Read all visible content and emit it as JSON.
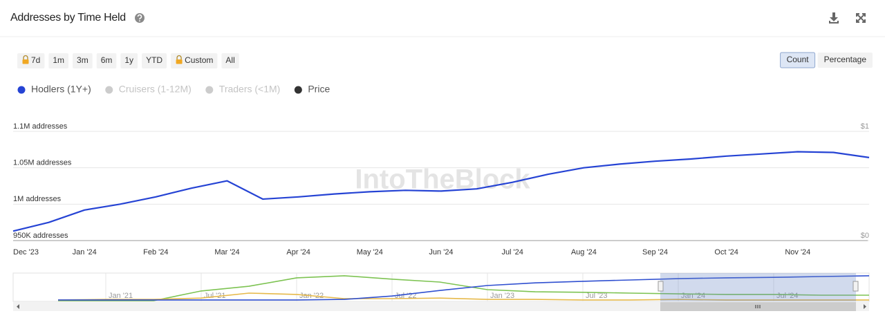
{
  "header": {
    "title": "Addresses by Time Held"
  },
  "range_buttons": [
    {
      "label": "7d",
      "locked": true
    },
    {
      "label": "1m",
      "locked": false
    },
    {
      "label": "3m",
      "locked": false
    },
    {
      "label": "6m",
      "locked": false
    },
    {
      "label": "1y",
      "locked": false
    },
    {
      "label": "YTD",
      "locked": false
    },
    {
      "label": "Custom",
      "locked": true
    },
    {
      "label": "All",
      "locked": false
    }
  ],
  "view_buttons": [
    {
      "label": "Count",
      "active": true
    },
    {
      "label": "Percentage",
      "active": false
    }
  ],
  "watermark": "IntoTheBlock",
  "chart_data": [
    {
      "type": "line",
      "legend": [
        {
          "name": "Cruisers (1-12M)",
          "color": "#cccccc",
          "enabled": false
        },
        {
          "name": "Traders (<1M)",
          "color": "#cccccc",
          "enabled": false
        },
        {
          "name": "Price",
          "color": "#333333",
          "enabled": true
        }
      ],
      "categories": [
        "Dec '23",
        null,
        "Jan '24",
        null,
        "Feb '24",
        null,
        "Mar '24",
        null,
        "Apr '24",
        null,
        "May '24",
        null,
        "Jun '24",
        null,
        "Jul '24",
        null,
        "Aug '24",
        null,
        "Sep '24",
        null,
        "Oct '24",
        null,
        "Nov '24",
        null,
        null
      ],
      "series": [
        {
          "name": "Hodlers (1Y+)",
          "color": "#2543d4",
          "values": [
            963000,
            975000,
            992000,
            1000000,
            1010000,
            1022000,
            1032000,
            1007000,
            1010000,
            1014000,
            1017000,
            1019000,
            1018000,
            1021000,
            1030000,
            1041000,
            1050000,
            1055000,
            1059000,
            1062000,
            1066000,
            1069000,
            1072000,
            1071000,
            1064000
          ]
        }
      ],
      "ylim": [
        950000,
        1100000
      ],
      "yticks": [
        {
          "value": 950000,
          "label": "950K addresses"
        },
        {
          "value": 1000000,
          "label": "1M addresses"
        },
        {
          "value": 1050000,
          "label": "1.05M addresses"
        },
        {
          "value": 1100000,
          "label": "1.1M addresses"
        }
      ],
      "y2lim": [
        0,
        1
      ],
      "y2ticks": [
        {
          "value": 0,
          "label": "$0"
        },
        {
          "value": 1,
          "label": "$1"
        }
      ],
      "grid": true
    },
    {
      "type": "line",
      "categories": [
        null,
        "Jan '21",
        null,
        "Jul '21",
        null,
        "Jan '22",
        null,
        "Jul '22",
        null,
        "Jan '23",
        null,
        "Jul '23",
        null,
        "Jan '24",
        null,
        "Jul '24",
        null,
        null
      ],
      "series": [
        {
          "color": "#7dc352",
          "values": [
            0,
            0,
            0,
            37,
            55,
            87,
            95,
            82,
            71,
            42,
            34,
            32,
            29,
            26,
            24,
            24,
            21,
            21
          ]
        },
        {
          "color": "#e6b94a",
          "values": [
            3,
            5,
            5,
            10,
            29,
            24,
            8,
            8,
            10,
            5,
            5,
            3,
            3,
            5,
            3,
            3,
            3,
            3
          ]
        },
        {
          "color": "#2f4fd0",
          "values": [
            3,
            3,
            3,
            3,
            3,
            3,
            5,
            18,
            39,
            58,
            68,
            74,
            79,
            84,
            87,
            89,
            92,
            95
          ]
        }
      ],
      "ylim": [
        0,
        100
      ]
    }
  ]
}
